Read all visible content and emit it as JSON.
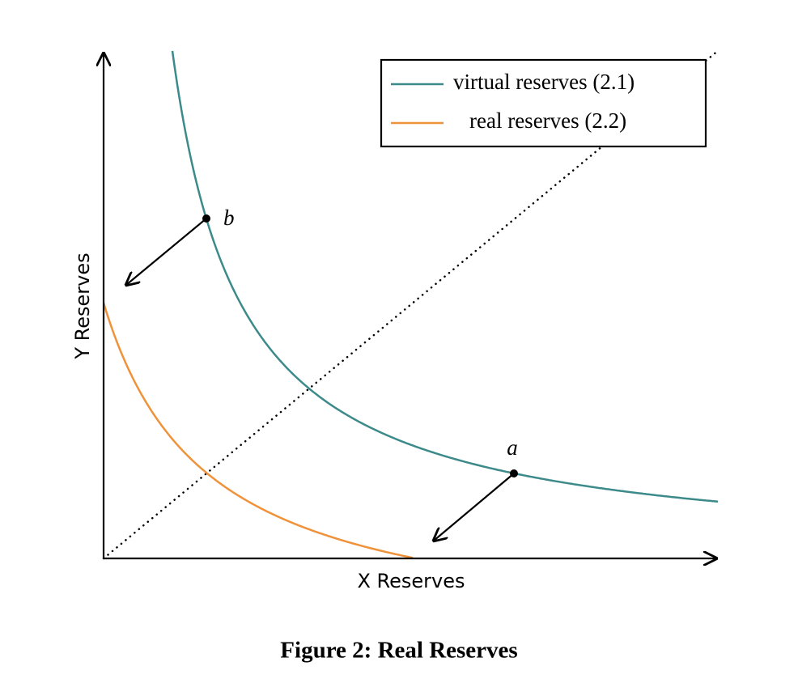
{
  "axes": {
    "x_label": "X Reserves",
    "y_label": "Y Reserves"
  },
  "legend": [
    {
      "label": "virtual reserves (2.1)"
    },
    {
      "label": "real reserves (2.2)"
    }
  ],
  "points": [
    {
      "label": "b"
    },
    {
      "label": "a"
    }
  ],
  "caption": "Figure 2: Real Reserves"
}
